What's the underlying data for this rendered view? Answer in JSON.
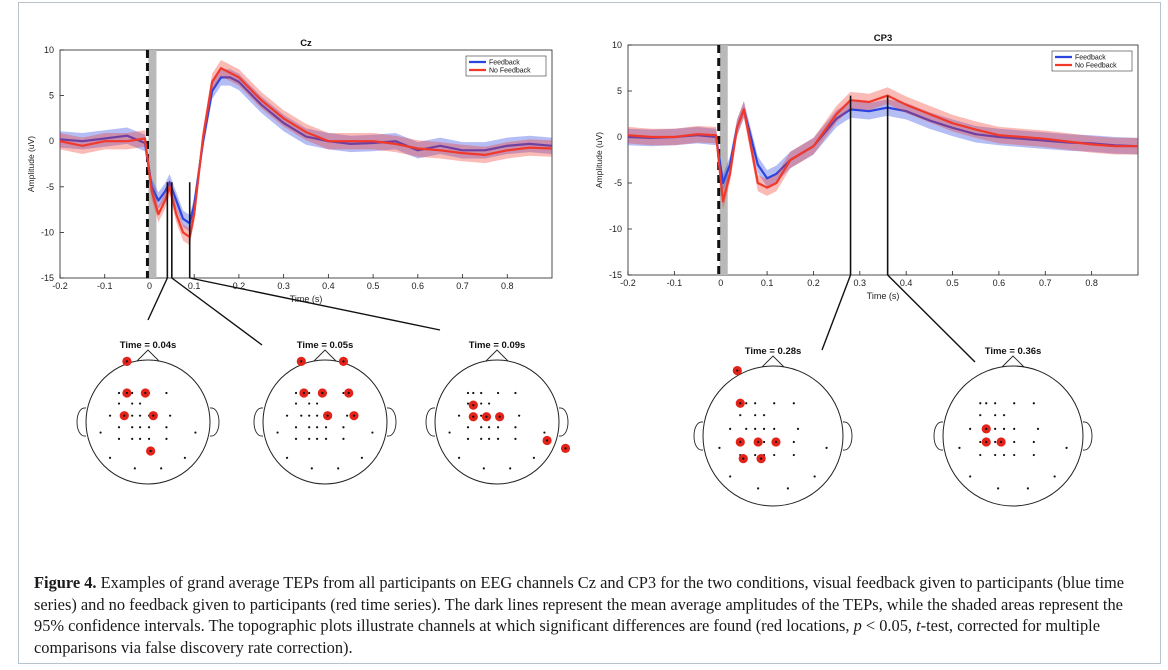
{
  "figure": {
    "caption_label": "Figure 4.",
    "caption_body": "Examples of grand average TEPs from all participants on EEG channels Cz and CP3 for the two conditions, visual feedback given to participants (blue time series) and no feedback given to participants (red time series). The dark lines represent the mean average amplitudes of the TEPs, while the shaded areas represent the 95% confidence intervals. The topographic plots illustrate channels at which significant differences are found (red locations, ",
    "caption_p": "p",
    "caption_lt": " < 0.05, ",
    "caption_t": "t",
    "caption_tail": "-test, corrected for multiple comparisons via false discovery rate correction)."
  },
  "colors": {
    "feedback": "#2b44e0",
    "no_feedback": "#f0392b",
    "electrode_sig": "#e2231a"
  },
  "chart_data": [
    {
      "type": "line",
      "title": "Cz",
      "xlabel": "Time (s)",
      "ylabel": "Amplitude (uV)",
      "xlim": [
        -0.2,
        0.9
      ],
      "ylim": [
        -15,
        10
      ],
      "xticks": [
        "-0.2",
        "-0.1",
        "0",
        "0.1",
        "0.2",
        "0.3",
        "0.4",
        "0.5",
        "0.6",
        "0.7",
        "0.8"
      ],
      "yticks": [
        "10",
        "5",
        "0",
        "-5",
        "-10",
        "-15"
      ],
      "legend": "top-right",
      "series": [
        {
          "name": "Feedback",
          "x": [
            -0.2,
            -0.15,
            -0.1,
            -0.05,
            -0.01,
            0.005,
            0.02,
            0.035,
            0.045,
            0.06,
            0.075,
            0.09,
            0.1,
            0.12,
            0.14,
            0.16,
            0.18,
            0.2,
            0.25,
            0.3,
            0.35,
            0.4,
            0.45,
            0.5,
            0.55,
            0.6,
            0.65,
            0.7,
            0.75,
            0.8,
            0.85,
            0.9
          ],
          "y": [
            0.2,
            0,
            0.3,
            0.6,
            -0.2,
            -5,
            -6.5,
            -5.5,
            -4.5,
            -6.5,
            -8.5,
            -9,
            -7,
            0,
            5.5,
            7,
            7,
            6.5,
            4,
            2,
            0.5,
            0,
            -0.3,
            -0.2,
            0,
            -1,
            -0.5,
            -1,
            -1,
            -0.5,
            -0.3,
            -0.5
          ]
        },
        {
          "name": "No Feedback",
          "x": [
            -0.2,
            -0.15,
            -0.1,
            -0.05,
            -0.01,
            0.005,
            0.02,
            0.035,
            0.045,
            0.06,
            0.075,
            0.09,
            0.1,
            0.12,
            0.14,
            0.16,
            0.18,
            0.2,
            0.25,
            0.3,
            0.35,
            0.4,
            0.45,
            0.5,
            0.55,
            0.6,
            0.65,
            0.7,
            0.75,
            0.8,
            0.85,
            0.9
          ],
          "y": [
            0,
            -0.5,
            0,
            0,
            0.3,
            -5.5,
            -8,
            -6.5,
            -5,
            -8,
            -10,
            -10.5,
            -8,
            0.5,
            6.5,
            8,
            7.5,
            7,
            4.5,
            2.5,
            1,
            0,
            0,
            0,
            -0.3,
            -0.8,
            -1,
            -1.3,
            -1.5,
            -1,
            -0.7,
            -0.8
          ]
        }
      ],
      "markers_s": [
        0.04,
        0.05,
        0.09
      ]
    },
    {
      "type": "line",
      "title": "CP3",
      "xlabel": "Time (s)",
      "ylabel": "Amplitude (uV)",
      "xlim": [
        -0.2,
        0.9
      ],
      "ylim": [
        -15,
        10
      ],
      "xticks": [
        "-0.2",
        "-0.1",
        "0",
        "0.1",
        "0.2",
        "0.3",
        "0.4",
        "0.5",
        "0.6",
        "0.7",
        "0.8"
      ],
      "yticks": [
        "10",
        "5",
        "0",
        "-5",
        "-10",
        "-15"
      ],
      "legend": "top-right",
      "series": [
        {
          "name": "Feedback",
          "x": [
            -0.2,
            -0.15,
            -0.1,
            -0.05,
            -0.01,
            0.005,
            0.02,
            0.035,
            0.05,
            0.065,
            0.08,
            0.1,
            0.12,
            0.15,
            0.2,
            0.25,
            0.28,
            0.32,
            0.36,
            0.4,
            0.45,
            0.5,
            0.55,
            0.6,
            0.65,
            0.7,
            0.75,
            0.8,
            0.85,
            0.9
          ],
          "y": [
            0,
            -0.1,
            0,
            0.2,
            0,
            -5,
            -3,
            1,
            3,
            0,
            -3,
            -4.5,
            -4,
            -2.5,
            -1,
            2,
            3,
            2.8,
            3.2,
            2.8,
            1.8,
            1,
            0.3,
            0,
            -0.2,
            -0.4,
            -0.6,
            -0.7,
            -0.9,
            -1
          ]
        },
        {
          "name": "No Feedback",
          "x": [
            -0.2,
            -0.15,
            -0.1,
            -0.05,
            -0.01,
            0.005,
            0.02,
            0.035,
            0.05,
            0.065,
            0.08,
            0.1,
            0.12,
            0.15,
            0.2,
            0.25,
            0.28,
            0.32,
            0.36,
            0.4,
            0.45,
            0.5,
            0.55,
            0.6,
            0.65,
            0.7,
            0.75,
            0.8,
            0.85,
            0.9
          ],
          "y": [
            0.2,
            0,
            0,
            0.3,
            0.2,
            -7,
            -4,
            1,
            3,
            -1,
            -5,
            -5.5,
            -5,
            -2.5,
            -1,
            2.5,
            4,
            3.8,
            4.5,
            3.5,
            2.5,
            1.5,
            0.8,
            0.2,
            0,
            -0.2,
            -0.5,
            -0.8,
            -1,
            -1
          ]
        }
      ],
      "markers_s": [
        0.28,
        0.36
      ]
    }
  ],
  "topoplots": [
    {
      "title": "Time = 0.04s"
    },
    {
      "title": "Time = 0.05s"
    },
    {
      "title": "Time = 0.09s"
    },
    {
      "title": "Time = 0.28s"
    },
    {
      "title": "Time = 0.36s"
    }
  ]
}
